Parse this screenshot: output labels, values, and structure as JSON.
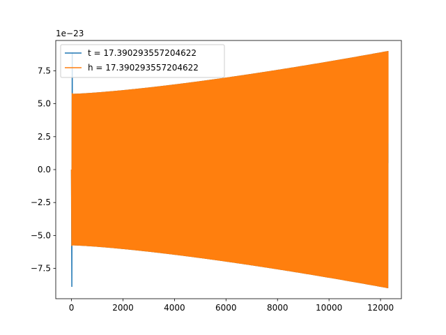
{
  "chart_data": {
    "type": "line",
    "title": "",
    "xlabel": "",
    "ylabel": "",
    "xlim": [
      -610,
      12810
    ],
    "ylim": [
      -9.8,
      9.8
    ],
    "y_scale_text": "1e−23",
    "x_ticks": [
      0,
      2000,
      4000,
      6000,
      8000,
      10000,
      12000
    ],
    "x_tick_labels": [
      "0",
      "2000",
      "4000",
      "6000",
      "8000",
      "10000",
      "12000"
    ],
    "y_ticks": [
      -7.5,
      -5.0,
      -2.5,
      0.0,
      2.5,
      5.0,
      7.5
    ],
    "y_tick_labels": [
      "−7.5",
      "−5.0",
      "−2.5",
      "0.0",
      "2.5",
      "5.0",
      "7.5"
    ],
    "grid": false,
    "legend_position": "top-left",
    "series": [
      {
        "name": "t = 17.390293557204622",
        "color": "#1f77b4",
        "x_range": [
          0,
          12290
        ],
        "envelope_start": 5.75,
        "envelope_end": 9.0,
        "initial_spike": 8.9,
        "end_value": 0.5
      },
      {
        "name": "h = 17.390293557204622",
        "color": "#ff7f0e",
        "x_range": [
          0,
          12290
        ],
        "envelope_start": 5.75,
        "envelope_end": 9.0,
        "initial_spike": 5.8,
        "end_value": 2.0
      }
    ]
  }
}
